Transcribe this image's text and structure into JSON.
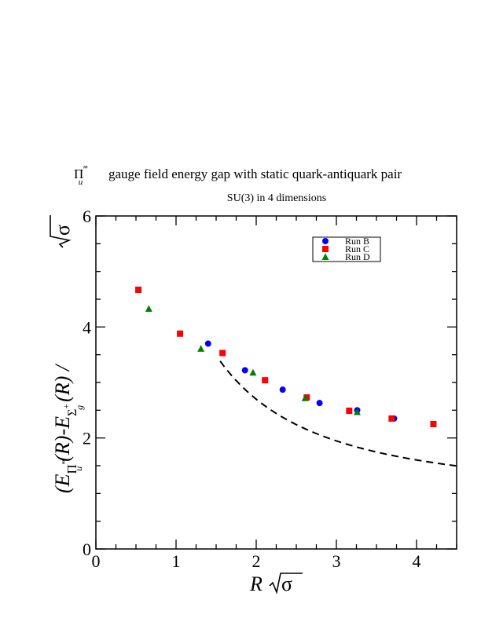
{
  "chart_data": {
    "type": "scatter",
    "title_symbol": "Π",
    "title_subscript": "u",
    "title_primes": "‴",
    "title_rest": "gauge field energy gap with static quark-antiquark pair",
    "subtitle": "SU(3) in 4 dimensions",
    "xlabel_var": "R",
    "xlabel_sigma": "σ",
    "ylabel": "(E_{Π_u'''}(R) - E_{Σ_g^+}(R)) / √σ",
    "ylabel_parts": {
      "open": "(E",
      "sub1_base": "Π",
      "sub1_sub": "u",
      "sub1_primes": "‴",
      "mid": "(R)-E",
      "sub2_base": "Σ",
      "sub2_sub": "g",
      "sub2_sup": "+",
      "close": "(R) / ",
      "sigma": "σ"
    },
    "xlim": [
      0,
      4.5
    ],
    "ylim": [
      0,
      6
    ],
    "x_ticks": [
      0,
      1,
      2,
      3,
      4
    ],
    "y_ticks": [
      0,
      2,
      4,
      6
    ],
    "x_tick_labels": [
      "0",
      "1",
      "2",
      "3",
      "4"
    ],
    "y_tick_labels": [
      "0",
      "2",
      "4",
      "6"
    ],
    "grid": false,
    "legend_position": "top-right",
    "series": [
      {
        "name": "Run B",
        "marker": "circle",
        "color": "#0000ff",
        "points": [
          {
            "x": 1.4,
            "y": 3.7
          },
          {
            "x": 1.86,
            "y": 3.22
          },
          {
            "x": 2.33,
            "y": 2.87
          },
          {
            "x": 2.79,
            "y": 2.63
          },
          {
            "x": 3.26,
            "y": 2.5
          },
          {
            "x": 3.72,
            "y": 2.35
          }
        ]
      },
      {
        "name": "Run C",
        "marker": "square",
        "color": "#ff0000",
        "points": [
          {
            "x": 0.53,
            "y": 4.67
          },
          {
            "x": 1.05,
            "y": 3.88
          },
          {
            "x": 1.58,
            "y": 3.53
          },
          {
            "x": 2.11,
            "y": 3.04
          },
          {
            "x": 2.63,
            "y": 2.73
          },
          {
            "x": 3.16,
            "y": 2.49
          },
          {
            "x": 3.69,
            "y": 2.35
          },
          {
            "x": 4.21,
            "y": 2.25
          }
        ]
      },
      {
        "name": "Run D",
        "marker": "triangle",
        "color": "#008000",
        "points": [
          {
            "x": 0.66,
            "y": 4.33
          },
          {
            "x": 1.31,
            "y": 3.61
          },
          {
            "x": 1.96,
            "y": 3.18
          },
          {
            "x": 2.61,
            "y": 2.72
          },
          {
            "x": 3.26,
            "y": 2.47
          }
        ]
      }
    ],
    "reference_curve": {
      "style": "dashed",
      "color": "#000000",
      "form": "y = sqrt(1 + 2*pi*a/x^2) with a = 4",
      "a": 4,
      "x_start": 1.55,
      "x_end": 4.5
    }
  }
}
